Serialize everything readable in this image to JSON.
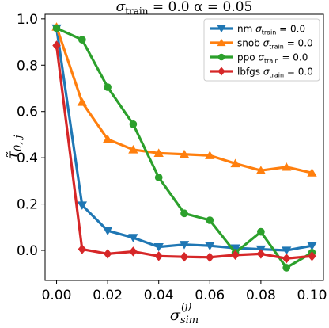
{
  "chart_data": {
    "type": "line",
    "title": "σ_train = 0.0  α =  0.05",
    "title_parts": {
      "main": "σ",
      "sub": "train",
      "rest": " = 0.0  α =  0.05"
    },
    "xlabel": {
      "main": "σ",
      "sub": "sim",
      "sup": "(j)"
    },
    "ylabel": {
      "main": "τ̃",
      "sub": "0, j"
    },
    "xlim": [
      -0.0045,
      0.1045
    ],
    "ylim": [
      -0.13,
      1.02
    ],
    "xticks": [
      0.0,
      0.02,
      0.04,
      0.06,
      0.08,
      0.1
    ],
    "xtick_labels": [
      "0.00",
      "0.02",
      "0.04",
      "0.06",
      "0.08",
      "0.10"
    ],
    "yticks": [
      0.0,
      0.2,
      0.4,
      0.6,
      0.8,
      1.0
    ],
    "ytick_labels": [
      "0.0",
      "0.2",
      "0.4",
      "0.6",
      "0.8",
      "1.0"
    ],
    "grid": false,
    "legend_position": "top-right",
    "x": [
      0.0,
      0.01,
      0.02,
      0.03,
      0.04,
      0.05,
      0.06,
      0.07,
      0.08,
      0.09,
      0.1
    ],
    "series": [
      {
        "name": "nm σ_train = 0.0",
        "label_main": "nm σ",
        "label_sub": "train",
        "label_rest": " = 0.0",
        "color": "#1f77b4",
        "marker": "triangle-down",
        "values": [
          0.96,
          0.195,
          0.085,
          0.055,
          0.015,
          0.025,
          0.02,
          0.01,
          0.005,
          0.0,
          0.02
        ]
      },
      {
        "name": "snob σ_train = 0.0",
        "label_main": "snob σ",
        "label_sub": "train",
        "label_rest": " = 0.0",
        "color": "#ff7f0e",
        "marker": "triangle-up",
        "values": [
          0.965,
          0.64,
          0.48,
          0.435,
          0.42,
          0.415,
          0.41,
          0.375,
          0.345,
          0.36,
          0.335
        ]
      },
      {
        "name": "ppo σ_train = 0.0",
        "label_main": "ppo σ",
        "label_sub": "train",
        "label_rest": " = 0.0",
        "color": "#2ca02c",
        "marker": "circle",
        "values": [
          0.96,
          0.91,
          0.705,
          0.545,
          0.315,
          0.16,
          0.13,
          -0.01,
          0.08,
          -0.075,
          -0.01
        ]
      },
      {
        "name": "lbfgs σ_train = 0.0",
        "label_main": "lbfgs σ",
        "label_sub": "train",
        "label_rest": " = 0.0",
        "color": "#d62728",
        "marker": "diamond",
        "values": [
          0.885,
          0.005,
          -0.015,
          -0.005,
          -0.025,
          -0.028,
          -0.03,
          -0.02,
          -0.015,
          -0.035,
          -0.025
        ]
      }
    ]
  }
}
